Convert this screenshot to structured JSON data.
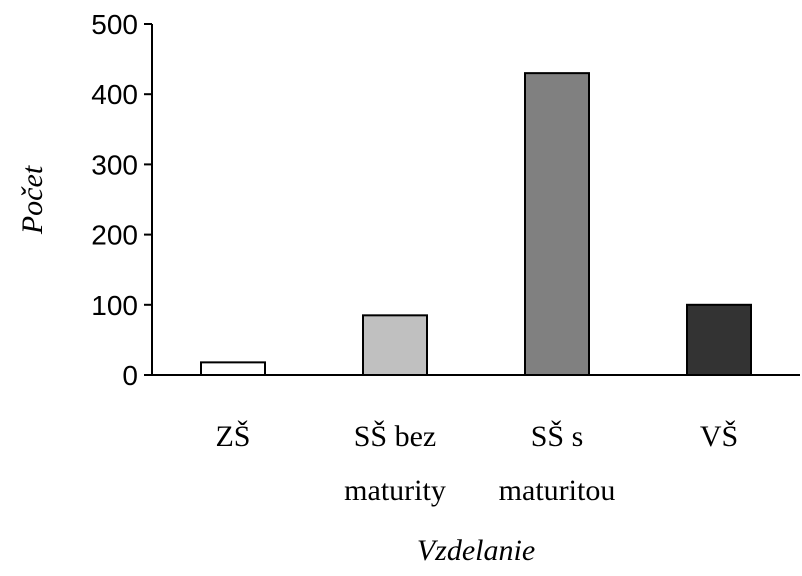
{
  "chart_data": {
    "type": "bar",
    "categories": [
      "ZŠ",
      "SŠ bez maturity",
      "SŠ s maturitou",
      "VŠ"
    ],
    "category_lines": [
      [
        "ZŠ"
      ],
      [
        "SŠ bez",
        "maturity"
      ],
      [
        "SŠ s",
        "maturitou"
      ],
      [
        "VŠ"
      ]
    ],
    "values": [
      18,
      85,
      430,
      100
    ],
    "bar_colors": [
      "#ffffff",
      "#c0c0c0",
      "#808080",
      "#333333"
    ],
    "xlabel": "Vzdelanie",
    "ylabel": "Počet",
    "ylim": [
      0,
      500
    ],
    "yticks": [
      "0",
      "100",
      "200",
      "300",
      "400",
      "500"
    ],
    "grid": false,
    "legend": "none"
  }
}
